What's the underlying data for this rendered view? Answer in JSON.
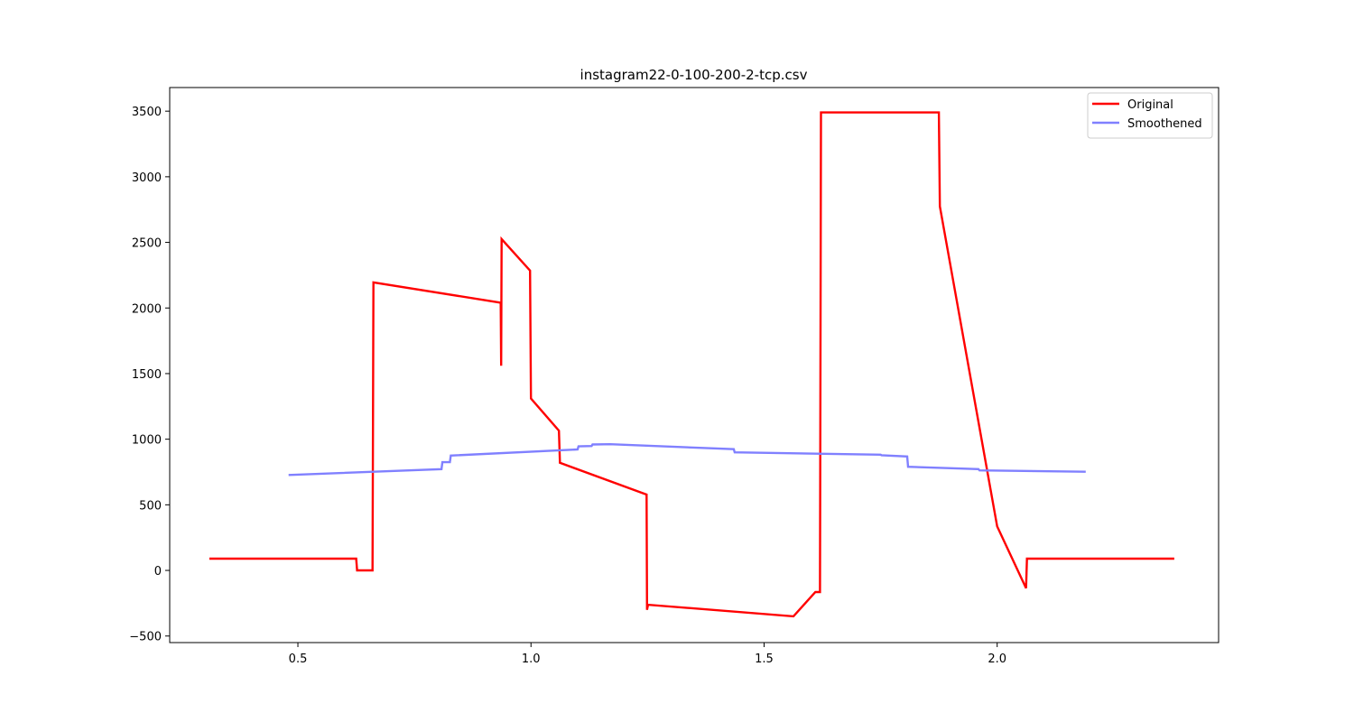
{
  "chart_data": {
    "type": "line",
    "title": "instagram22-0-100-200-2-tcp.csv",
    "xlabel": "",
    "ylabel": "",
    "xlim": [
      0.225,
      2.475
    ],
    "ylim": [
      -550,
      3680
    ],
    "xticks": [
      0.5,
      1.0,
      1.5,
      2.0
    ],
    "xtick_labels": [
      "0.5",
      "1.0",
      "1.5",
      "2.0"
    ],
    "yticks": [
      -500,
      0,
      500,
      1000,
      1500,
      2000,
      2500,
      3000,
      3500
    ],
    "ytick_labels": [
      "−500",
      "0",
      "500",
      "1000",
      "1500",
      "2000",
      "2500",
      "3000",
      "3500"
    ],
    "grid": false,
    "legend": "top-right",
    "series": [
      {
        "name": "Original",
        "color": "#ff0000",
        "points": [
          [
            0.31,
            90
          ],
          [
            0.625,
            90
          ],
          [
            0.627,
            0
          ],
          [
            0.66,
            0
          ],
          [
            0.662,
            2195
          ],
          [
            0.935,
            2040
          ],
          [
            0.936,
            1560
          ],
          [
            0.937,
            2525
          ],
          [
            0.998,
            2285
          ],
          [
            1.0,
            1310
          ],
          [
            1.06,
            1065
          ],
          [
            1.062,
            820
          ],
          [
            1.248,
            578
          ],
          [
            1.249,
            -300
          ],
          [
            1.251,
            -262
          ],
          [
            1.563,
            -350
          ],
          [
            1.61,
            -165
          ],
          [
            1.62,
            -165
          ],
          [
            1.622,
            3490
          ],
          [
            1.875,
            3490
          ],
          [
            1.877,
            2775
          ],
          [
            2.0,
            335
          ],
          [
            2.062,
            -135
          ],
          [
            2.064,
            90
          ],
          [
            2.38,
            90
          ]
        ]
      },
      {
        "name": "Smoothened",
        "color": "#8080ff",
        "points": [
          [
            0.48,
            727
          ],
          [
            0.808,
            772
          ],
          [
            0.81,
            825
          ],
          [
            0.826,
            825
          ],
          [
            0.828,
            875
          ],
          [
            1.1,
            922
          ],
          [
            1.102,
            945
          ],
          [
            1.13,
            948
          ],
          [
            1.132,
            960
          ],
          [
            1.17,
            962
          ],
          [
            1.435,
            924
          ],
          [
            1.437,
            900
          ],
          [
            1.75,
            882
          ],
          [
            1.752,
            878
          ],
          [
            1.807,
            868
          ],
          [
            1.809,
            790
          ],
          [
            1.96,
            772
          ],
          [
            1.962,
            762
          ],
          [
            2.19,
            752
          ]
        ]
      }
    ]
  }
}
